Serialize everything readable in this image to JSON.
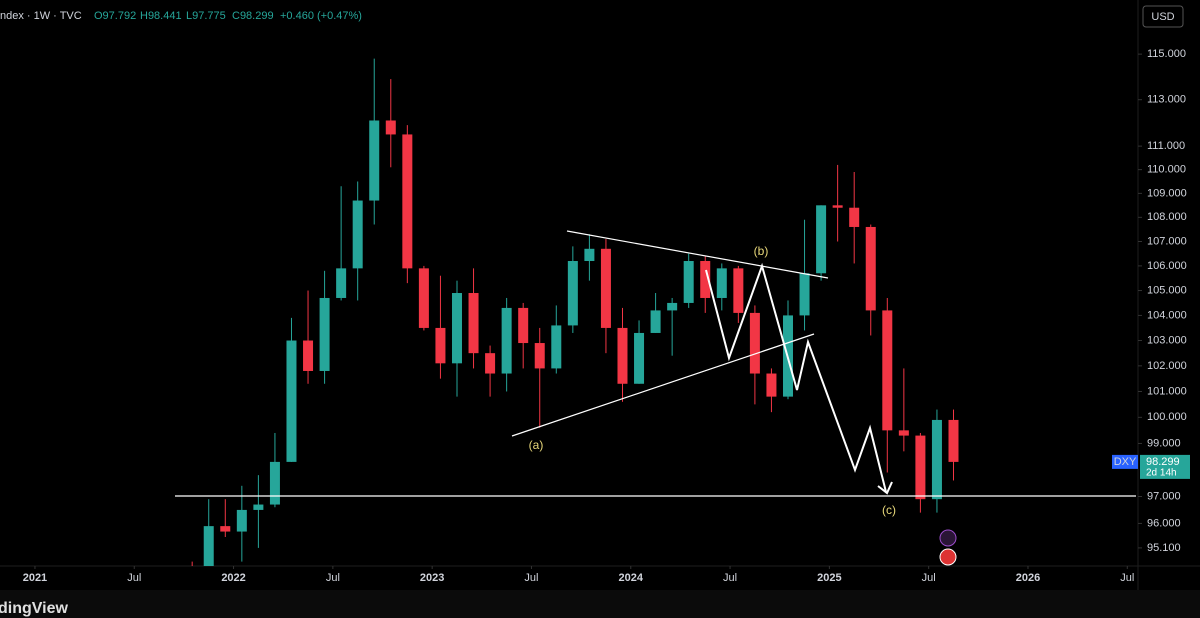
{
  "header": {
    "symbol": "ndex · 1W · TVC",
    "open": "O97.792",
    "high": "H98.441",
    "low": "L97.775",
    "close": "C98.299",
    "change": "+0.460 (+0.47%)",
    "currency": "USD"
  },
  "price_tag": {
    "symbol": "DXY",
    "price": "98.299",
    "countdown": "2d 14h"
  },
  "annotations": {
    "a": "(a)",
    "b": "(b)",
    "c": "(c)"
  },
  "logo": "dingView",
  "chart_data": {
    "type": "candlestick",
    "log": true,
    "up_color": "#26a69a",
    "down_color": "#f23645",
    "x": [
      "2021-10",
      "2021-11",
      "2021-12",
      "2022-01",
      "2022-02",
      "2022-03",
      "2022-04",
      "2022-05",
      "2022-06",
      "2022-07",
      "2022-08",
      "2022-09",
      "2022-10",
      "2022-11",
      "2022-12",
      "2023-01",
      "2023-02",
      "2023-03",
      "2023-04",
      "2023-05",
      "2023-06",
      "2023-07",
      "2023-08",
      "2023-09",
      "2023-10",
      "2023-11",
      "2023-12",
      "2024-01",
      "2024-02",
      "2024-03",
      "2024-04",
      "2024-05",
      "2024-06",
      "2024-07",
      "2024-08",
      "2024-09",
      "2024-10",
      "2024-11",
      "2024-12",
      "2025-01",
      "2025-02",
      "2025-03",
      "2025-04",
      "2025-05",
      "2025-06",
      "2025-07",
      "2025-08"
    ],
    "open": [
      94.2,
      94.1,
      95.9,
      95.7,
      96.5,
      96.7,
      98.3,
      103.0,
      101.8,
      104.7,
      105.9,
      108.7,
      112.1,
      111.5,
      105.9,
      103.5,
      102.1,
      104.9,
      102.5,
      101.7,
      104.3,
      102.9,
      101.9,
      103.6,
      106.2,
      106.7,
      103.5,
      101.3,
      103.3,
      104.2,
      104.5,
      106.2,
      104.7,
      105.9,
      104.1,
      101.7,
      100.8,
      104.0,
      105.7,
      108.5,
      108.4,
      107.6,
      104.2,
      99.5,
      99.3,
      96.9,
      99.9
    ],
    "high": [
      94.6,
      96.9,
      96.9,
      97.4,
      97.8,
      99.4,
      103.9,
      105.0,
      105.8,
      109.3,
      109.5,
      114.8,
      113.9,
      111.9,
      106.0,
      105.6,
      105.4,
      105.9,
      102.8,
      104.7,
      104.5,
      103.5,
      104.4,
      106.8,
      107.3,
      107.1,
      104.3,
      103.8,
      104.9,
      104.7,
      106.5,
      106.4,
      106.1,
      106.0,
      104.4,
      101.9,
      104.6,
      107.9,
      108.5,
      110.2,
      109.9,
      107.7,
      104.7,
      101.9,
      99.4,
      100.3,
      100.3
    ],
    "low": [
      93.3,
      93.9,
      95.5,
      94.6,
      95.1,
      96.6,
      98.3,
      101.3,
      101.3,
      104.6,
      104.6,
      107.7,
      110.1,
      105.3,
      103.4,
      101.5,
      100.8,
      101.9,
      100.8,
      101.0,
      101.9,
      99.6,
      101.7,
      103.3,
      105.4,
      102.5,
      100.6,
      101.3,
      103.3,
      102.4,
      104.3,
      104.1,
      104.2,
      103.7,
      100.5,
      100.2,
      100.7,
      103.4,
      105.4,
      107.0,
      106.1,
      103.2,
      97.9,
      98.7,
      96.4,
      96.4,
      97.6
    ],
    "close": [
      94.1,
      95.9,
      95.7,
      96.5,
      96.7,
      98.3,
      103.0,
      101.8,
      104.7,
      105.9,
      108.7,
      112.1,
      111.5,
      105.9,
      103.5,
      102.1,
      104.9,
      102.5,
      101.7,
      104.3,
      102.9,
      101.9,
      103.6,
      106.2,
      106.7,
      103.5,
      101.3,
      103.3,
      104.2,
      104.5,
      106.2,
      104.7,
      105.9,
      104.1,
      101.7,
      100.8,
      104.0,
      105.7,
      108.5,
      108.4,
      107.6,
      104.2,
      99.5,
      99.3,
      96.9,
      99.9,
      98.3
    ],
    "xlim": [
      2020.824,
      2026.554
    ],
    "xticks": [
      2021,
      {
        "value": 2021.5,
        "label": "Jul"
      },
      2022,
      {
        "value": 2022.5,
        "label": "Jul"
      },
      2023,
      {
        "value": 2023.5,
        "label": "Jul"
      },
      2024,
      {
        "value": 2024.5,
        "label": "Jul"
      },
      2025,
      {
        "value": 2025.5,
        "label": "Jul"
      },
      2026,
      {
        "value": 2026.5,
        "label": "Jul"
      }
    ],
    "ylim": [
      94.44,
      117.42
    ],
    "yticks": [
      {
        "value": 95.1,
        "label": "95.100"
      },
      {
        "value": 96,
        "label": "96.000"
      },
      {
        "value": 97,
        "label": "97.000"
      },
      {
        "value": 99,
        "label": "99.000"
      },
      {
        "value": 100,
        "label": "100.000"
      },
      {
        "value": 101,
        "label": "101.000"
      },
      {
        "value": 102,
        "label": "102.000"
      },
      {
        "value": 103,
        "label": "103.000"
      },
      {
        "value": 104,
        "label": "104.000"
      },
      {
        "value": 105,
        "label": "105.000"
      },
      {
        "value": 106,
        "label": "106.000"
      },
      {
        "value": 107,
        "label": "107.000"
      },
      {
        "value": 108,
        "label": "108.000"
      },
      {
        "value": 109,
        "label": "109.000"
      },
      {
        "value": 110,
        "label": "110.000"
      },
      {
        "value": 111,
        "label": "111.000"
      },
      {
        "value": 113,
        "label": "113.000"
      },
      {
        "value": 115,
        "label": "115.000"
      }
    ]
  }
}
